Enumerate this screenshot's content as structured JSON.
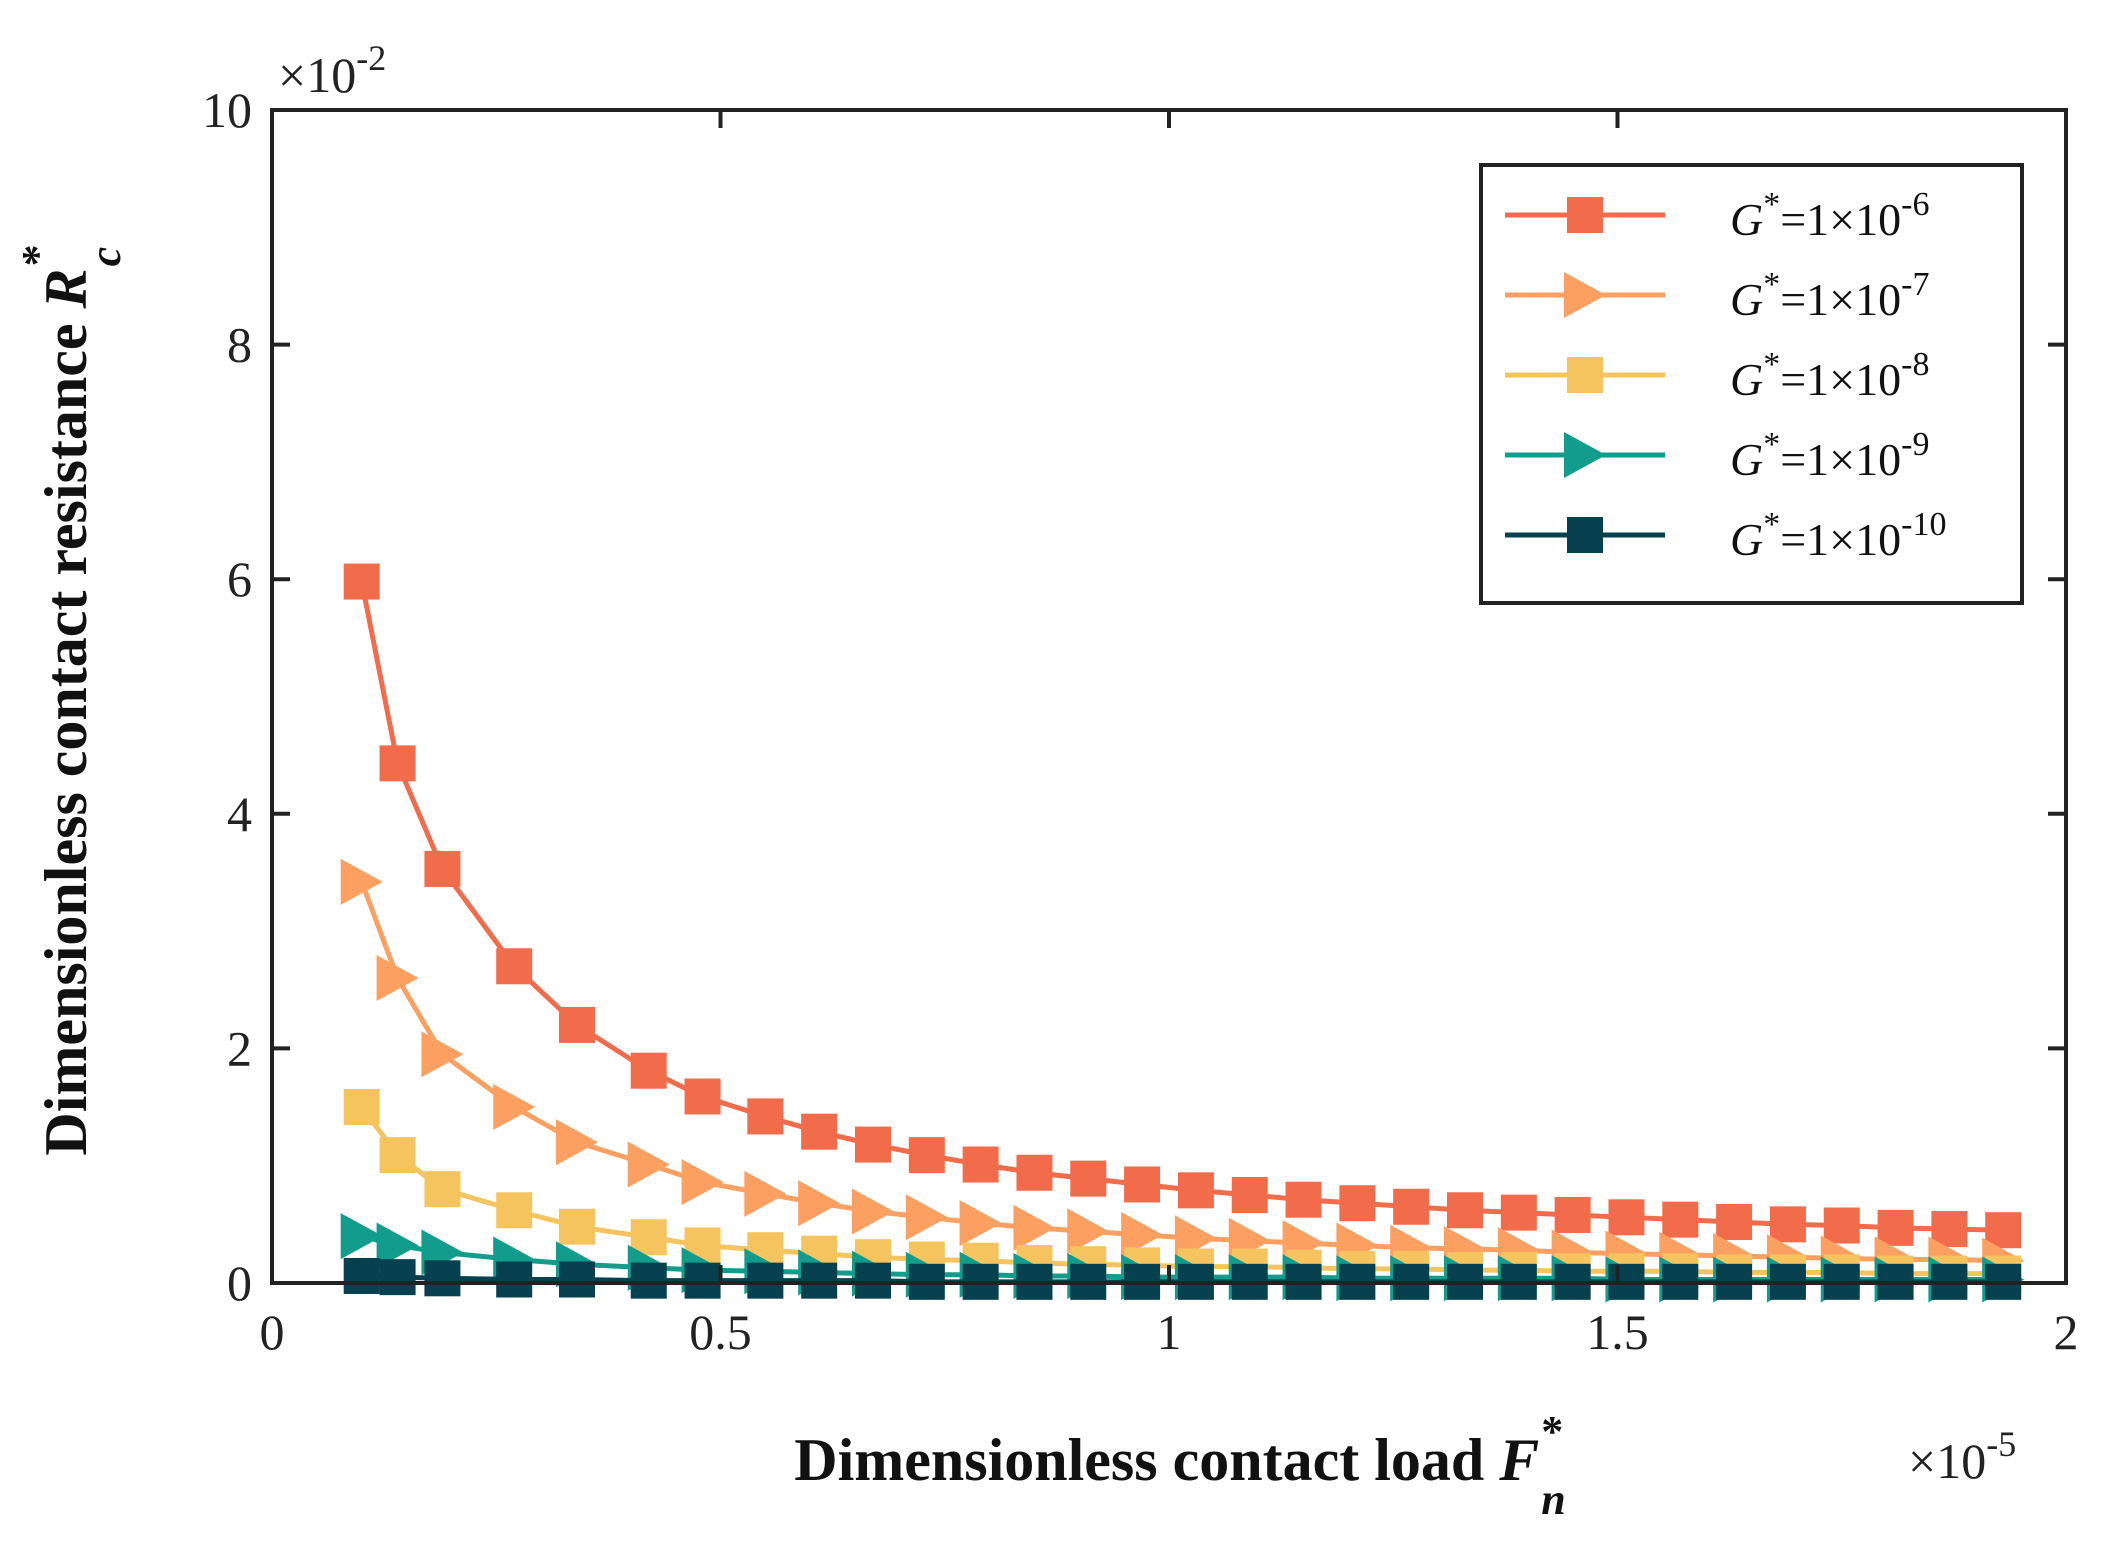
{
  "chart_data": {
    "type": "line",
    "title": "",
    "xlabel": "Dimensionless contact load",
    "xlabel_symbol": "F",
    "xlabel_sub": "n",
    "xlabel_sup": "*",
    "ylabel": "Dimensionless contact resistance",
    "ylabel_symbol": "R",
    "ylabel_sub": "c",
    "ylabel_sup": "*",
    "x_exponent": {
      "base": "×10",
      "exp": "-5"
    },
    "y_exponent": {
      "base": "×10",
      "exp": "-2"
    },
    "xlim": [
      0,
      2
    ],
    "ylim": [
      0,
      10
    ],
    "xticks": [
      0,
      0.5,
      1,
      1.5,
      2
    ],
    "xtick_labels": [
      "0",
      "0.5",
      "1",
      "1.5",
      "2"
    ],
    "yticks": [
      0,
      2,
      4,
      6,
      8,
      10
    ],
    "ytick_labels": [
      "0",
      "2",
      "4",
      "6",
      "8",
      "10"
    ],
    "grid": false,
    "legend_position": "top-right",
    "x": [
      0.1,
      0.14,
      0.19,
      0.27,
      0.34,
      0.42,
      0.48,
      0.55,
      0.61,
      0.67,
      0.73,
      0.79,
      0.85,
      0.91,
      0.97,
      1.03,
      1.09,
      1.15,
      1.21,
      1.27,
      1.33,
      1.39,
      1.45,
      1.51,
      1.57,
      1.63,
      1.69,
      1.75,
      1.81,
      1.87,
      1.93
    ],
    "series": [
      {
        "legend_symbol": "G",
        "legend_sup": "*",
        "legend_value": "=1×10",
        "legend_exp": "-6",
        "color": "#F26B4B",
        "marker": "square",
        "values": [
          5.98,
          4.43,
          3.53,
          2.7,
          2.2,
          1.81,
          1.59,
          1.42,
          1.29,
          1.18,
          1.09,
          1.01,
          0.94,
          0.89,
          0.84,
          0.79,
          0.75,
          0.71,
          0.68,
          0.65,
          0.62,
          0.6,
          0.58,
          0.56,
          0.54,
          0.52,
          0.5,
          0.49,
          0.47,
          0.46,
          0.45
        ]
      },
      {
        "legend_symbol": "G",
        "legend_sup": "*",
        "legend_value": "=1×10",
        "legend_exp": "-7",
        "color": "#FCA062",
        "marker": "triangle-right",
        "values": [
          3.42,
          2.6,
          1.95,
          1.5,
          1.2,
          1.01,
          0.86,
          0.76,
          0.68,
          0.61,
          0.56,
          0.51,
          0.47,
          0.44,
          0.41,
          0.38,
          0.36,
          0.34,
          0.32,
          0.3,
          0.29,
          0.28,
          0.26,
          0.25,
          0.24,
          0.23,
          0.22,
          0.21,
          0.2,
          0.2,
          0.19
        ]
      },
      {
        "legend_symbol": "G",
        "legend_sup": "*",
        "legend_value": "=1×10",
        "legend_exp": "-8",
        "color": "#F6C45E",
        "marker": "square",
        "values": [
          1.5,
          1.09,
          0.8,
          0.62,
          0.48,
          0.39,
          0.32,
          0.28,
          0.25,
          0.22,
          0.2,
          0.19,
          0.17,
          0.16,
          0.15,
          0.14,
          0.14,
          0.13,
          0.12,
          0.12,
          0.11,
          0.11,
          0.1,
          0.1,
          0.1,
          0.09,
          0.09,
          0.09,
          0.08,
          0.08,
          0.08
        ]
      },
      {
        "legend_symbol": "G",
        "legend_sup": "*",
        "legend_value": "=1×10",
        "legend_exp": "-9",
        "color": "#119C8C",
        "marker": "triangle-right",
        "values": [
          0.4,
          0.32,
          0.26,
          0.2,
          0.16,
          0.13,
          0.11,
          0.1,
          0.09,
          0.08,
          0.07,
          0.07,
          0.06,
          0.06,
          0.05,
          0.05,
          0.05,
          0.05,
          0.04,
          0.04,
          0.04,
          0.04,
          0.04,
          0.03,
          0.03,
          0.03,
          0.03,
          0.03,
          0.03,
          0.03,
          0.03
        ]
      },
      {
        "legend_symbol": "G",
        "legend_sup": "*",
        "legend_value": "=1×10",
        "legend_exp": "-10",
        "color": "#07404F",
        "marker": "square",
        "values": [
          0.06,
          0.05,
          0.04,
          0.03,
          0.03,
          0.02,
          0.02,
          0.02,
          0.02,
          0.02,
          0.01,
          0.01,
          0.01,
          0.01,
          0.01,
          0.01,
          0.01,
          0.01,
          0.01,
          0.01,
          0.01,
          0.01,
          0.01,
          0.01,
          0.01,
          0.01,
          0.01,
          0.01,
          0.01,
          0.01,
          0.01
        ]
      }
    ]
  }
}
